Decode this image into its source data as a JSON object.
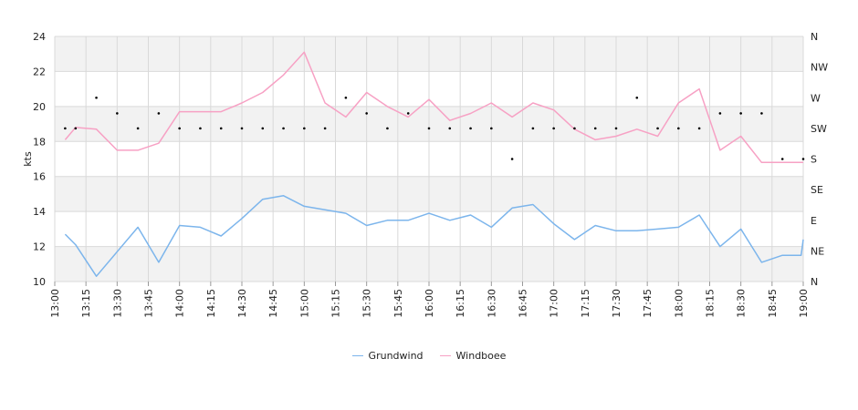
{
  "chart_data": {
    "type": "line",
    "ylabel": "kts",
    "ylim": [
      10,
      24
    ],
    "y_ticks": [
      "10",
      "12",
      "14",
      "16",
      "18",
      "20",
      "22",
      "24"
    ],
    "x_range": [
      "13:00",
      "19:00"
    ],
    "x_ticks": [
      "13:00",
      "13:15",
      "13:30",
      "13:45",
      "14:00",
      "14:15",
      "14:30",
      "14:45",
      "15:00",
      "15:15",
      "15:30",
      "15:45",
      "16:00",
      "16:15",
      "16:30",
      "16:45",
      "17:00",
      "17:15",
      "17:30",
      "17:45",
      "18:00",
      "18:15",
      "18:30",
      "18:45",
      "19:00"
    ],
    "direction_axis": {
      "labels": [
        "N",
        "NE",
        "E",
        "SE",
        "S",
        "SW",
        "W",
        "NW",
        "N"
      ],
      "range_degrees": [
        0,
        360
      ]
    },
    "grid": true,
    "legend_position": "bottom-center",
    "colors": {
      "Grundwind": "#7cb5ec",
      "Windboee": "#f7a1c4",
      "direction": "#000000",
      "band": "#f2f2f2",
      "grid": "#d9d9d9"
    },
    "times": [
      "13:05",
      "13:10",
      "13:20",
      "13:30",
      "13:40",
      "13:50",
      "14:00",
      "14:10",
      "14:20",
      "14:30",
      "14:40",
      "14:50",
      "15:00",
      "15:10",
      "15:20",
      "15:30",
      "15:40",
      "15:50",
      "16:00",
      "16:10",
      "16:20",
      "16:30",
      "16:40",
      "16:50",
      "17:00",
      "17:10",
      "17:20",
      "17:30",
      "17:40",
      "17:50",
      "18:00",
      "18:10",
      "18:20",
      "18:30",
      "18:40",
      "18:50",
      "18:59",
      "19:00"
    ],
    "series": [
      {
        "name": "Grundwind",
        "values": [
          12.7,
          12.1,
          10.3,
          11.7,
          13.1,
          11.1,
          13.2,
          13.1,
          12.6,
          13.6,
          14.7,
          14.9,
          14.3,
          14.1,
          13.9,
          13.2,
          13.5,
          13.5,
          13.9,
          13.5,
          13.8,
          13.1,
          14.2,
          14.4,
          13.3,
          12.4,
          13.2,
          12.9,
          12.9,
          13.0,
          13.1,
          13.8,
          12.0,
          13.0,
          11.1,
          11.5,
          11.5,
          12.4
        ]
      },
      {
        "name": "Windboee",
        "values": [
          18.1,
          18.8,
          18.7,
          17.5,
          17.5,
          17.9,
          19.7,
          19.7,
          19.7,
          20.2,
          20.8,
          21.8,
          23.1,
          20.2,
          19.4,
          20.8,
          20.0,
          19.4,
          20.4,
          19.2,
          19.6,
          20.2,
          19.4,
          20.2,
          19.8,
          18.7,
          18.1,
          18.3,
          18.7,
          18.3,
          20.2,
          21.0,
          17.5,
          18.3,
          16.8,
          16.8,
          16.8,
          16.8
        ]
      }
    ],
    "direction": {
      "times": [
        "13:05",
        "13:10",
        "13:20",
        "13:30",
        "13:40",
        "13:50",
        "14:00",
        "14:10",
        "14:20",
        "14:30",
        "14:40",
        "14:50",
        "15:00",
        "15:10",
        "15:20",
        "15:30",
        "15:40",
        "15:50",
        "16:00",
        "16:10",
        "16:20",
        "16:30",
        "16:40",
        "16:50",
        "17:00",
        "17:10",
        "17:20",
        "17:30",
        "17:40",
        "17:50",
        "18:00",
        "18:10",
        "18:20",
        "18:30",
        "18:40",
        "18:50",
        "19:00"
      ],
      "degrees": [
        225,
        225,
        270,
        247,
        225,
        247,
        225,
        225,
        225,
        225,
        225,
        225,
        225,
        225,
        270,
        247,
        225,
        247,
        225,
        225,
        225,
        225,
        180,
        225,
        225,
        225,
        225,
        225,
        270,
        225,
        225,
        225,
        247,
        247,
        247,
        180,
        180
      ]
    }
  }
}
